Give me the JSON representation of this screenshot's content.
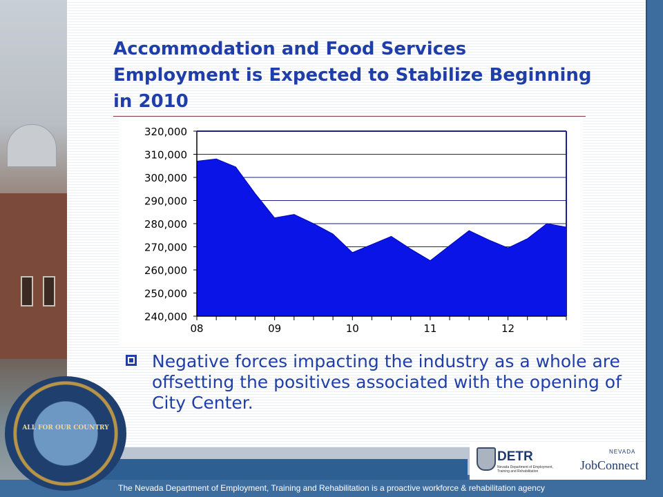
{
  "slide": {
    "title": "Accommodation and Food Services Employment is Expected to Stabilize Beginning in 2010",
    "bullet": "Negative forces impacting the industry as a whole are offsetting the positives associated with the opening of City Center.",
    "footer": "The Nevada Department of Employment, Training and Rehabilitation is a proactive workforce & rehabilitation agency"
  },
  "logos": {
    "seal_text": "THE GREAT SEAL OF THE STATE OF NEVADA",
    "seal_motto": "ALL FOR OUR COUNTRY",
    "detr_name": "DETR",
    "detr_sub": "Nevada Department of Employment, Training and Rehabilitation",
    "jobconnect_state": "NEVADA",
    "jobconnect_name": "JobConnect"
  },
  "colors": {
    "title": "#1f3ea8",
    "area_fill": "#0a14e6",
    "background_band": "#3d6c9e"
  },
  "chart_data": {
    "type": "area",
    "title": "",
    "xlabel": "",
    "ylabel": "",
    "x_ticks": [
      "08",
      "09",
      "10",
      "11",
      "12"
    ],
    "y_ticks": [
      "320,000",
      "310,000",
      "300,000",
      "290,000",
      "280,000",
      "270,000",
      "260,000",
      "250,000",
      "240,000"
    ],
    "ylim": [
      240000,
      320000
    ],
    "xlim": [
      2008.0,
      2012.75
    ],
    "grid": true,
    "legend": "none",
    "series": [
      {
        "x": [
          2008.0,
          2008.25,
          2008.5,
          2008.75,
          2009.0,
          2009.25,
          2009.5,
          2009.75,
          2010.0,
          2010.25,
          2010.5,
          2010.75,
          2011.0,
          2011.25,
          2011.5,
          2011.75,
          2012.0,
          2012.25,
          2012.5,
          2012.75
        ],
        "values": [
          307000,
          308000,
          304500,
          293000,
          282500,
          284000,
          280000,
          275500,
          267500,
          271000,
          274500,
          269000,
          264000,
          270500,
          277000,
          273000,
          269500,
          273500,
          280000,
          278500
        ]
      }
    ]
  }
}
